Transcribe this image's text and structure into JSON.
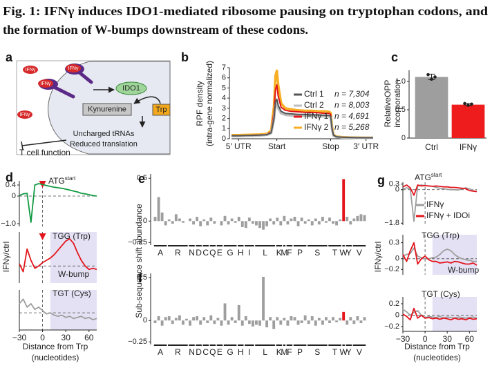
{
  "title": [
    "Fig. 1: IFNγ induces IDO1-mediated ribosome pausing on tryptophan codons, and",
    "the formation of W-bumps downstream of these codons."
  ],
  "panel_a": {
    "panel": "a",
    "ligands": [
      "IFNγ",
      "IFNγ",
      "IFNγ",
      "IFNγ"
    ],
    "enzyme": "IDO1",
    "product": "Kynurenine",
    "substrate": "Trp",
    "effects": [
      "Uncharged tRNAs",
      "Reduced translation"
    ],
    "outcome": "T cell function"
  },
  "chart_data": [
    {
      "type": "line",
      "panel": "b",
      "ylabel": [
        "RPF density",
        "(intra-gene normalized)"
      ],
      "x": [
        0,
        5,
        10,
        15,
        20,
        25,
        28,
        30,
        31,
        32,
        33,
        35,
        38,
        42,
        47,
        52,
        57,
        62,
        66,
        69,
        70,
        71,
        72,
        74,
        78,
        84,
        90,
        95,
        100
      ],
      "xlim": [
        0,
        100
      ],
      "xticks": [
        {
          "value": 5,
          "label": "5′ UTR"
        },
        {
          "value": 32,
          "label": "Start"
        },
        {
          "value": 70,
          "label": "Stop"
        },
        {
          "value": 95,
          "label": "3′ UTR"
        }
      ],
      "ylim": [
        0,
        7
      ],
      "yticks": [
        0,
        1,
        2,
        3,
        4,
        5,
        6,
        7
      ],
      "series": [
        {
          "name": "Ctrl 1",
          "label": "n = 7,304",
          "color": "#555555",
          "values": [
            0.3,
            0.3,
            0.32,
            0.33,
            0.35,
            0.4,
            0.6,
            2.0,
            3.6,
            3.9,
            3.3,
            2.7,
            2.5,
            2.45,
            2.4,
            2.4,
            2.35,
            2.35,
            2.3,
            2.3,
            2.2,
            1.0,
            0.35,
            0.2,
            0.15,
            0.12,
            0.1,
            0.1,
            0.1
          ]
        },
        {
          "name": "Ctrl 2",
          "label": "n = 8,003",
          "color": "#bdbdbd",
          "values": [
            0.25,
            0.25,
            0.28,
            0.3,
            0.32,
            0.38,
            0.55,
            1.9,
            3.3,
            3.5,
            3.0,
            2.5,
            2.35,
            2.3,
            2.25,
            2.25,
            2.2,
            2.2,
            2.2,
            2.2,
            2.1,
            0.9,
            0.3,
            0.18,
            0.12,
            0.1,
            0.08,
            0.08,
            0.08
          ]
        },
        {
          "name": "IFNγ 1",
          "label": "n = 4,691",
          "color": "#e3141b",
          "values": [
            0.3,
            0.3,
            0.32,
            0.35,
            0.38,
            0.42,
            0.7,
            2.6,
            4.8,
            5.3,
            4.2,
            3.1,
            2.8,
            2.7,
            2.65,
            2.6,
            2.6,
            2.55,
            2.5,
            2.5,
            2.4,
            1.1,
            0.35,
            0.2,
            0.15,
            0.12,
            0.1,
            0.1,
            0.1
          ]
        },
        {
          "name": "IFNγ 2",
          "label": "n = 5,268",
          "color": "#f7ae22",
          "values": [
            0.35,
            0.35,
            0.38,
            0.4,
            0.42,
            0.48,
            0.8,
            3.2,
            6.2,
            6.7,
            5.3,
            3.5,
            3.0,
            2.9,
            2.8,
            2.75,
            2.75,
            2.7,
            2.7,
            2.65,
            2.55,
            1.2,
            0.4,
            0.22,
            0.16,
            0.13,
            0.11,
            0.1,
            0.1
          ]
        }
      ]
    },
    {
      "type": "bar",
      "panel": "c",
      "ylabel": [
        "RelativeOPP",
        "incorporation"
      ],
      "categories": [
        "Ctrl",
        "IFNγ"
      ],
      "values": [
        1.08,
        0.59
      ],
      "errors": [
        0.05,
        0.02
      ],
      "points": [
        [
          1.12,
          1.04,
          1.08
        ],
        [
          0.61,
          0.58,
          0.6
        ]
      ],
      "colors": [
        "#9e9e9e",
        "#ee1c1c"
      ],
      "ylim": [
        0,
        1.2
      ],
      "yticks": [
        0,
        0.5,
        {
          "value": 1,
          "label": "1.0"
        }
      ]
    },
    {
      "type": "line",
      "panel": "d",
      "title": "ATG",
      "title_sup": "start",
      "origin_lines": true,
      "x": [
        -30,
        -25,
        -20,
        -15,
        -10,
        -5,
        0,
        5,
        10,
        15,
        20,
        25,
        30,
        35,
        40,
        45,
        50,
        55,
        60,
        65,
        70
      ],
      "xlim": [
        -30,
        70
      ],
      "ylim": [
        -1.1,
        0.55
      ],
      "yticks": [
        0.4,
        0,
        {
          "value": -1,
          "label": "−1.0"
        }
      ],
      "series": [
        {
          "color": "#139a43",
          "values": [
            0.02,
            0.08,
            0.1,
            -0.95,
            0.4,
            0.45,
            0.42,
            0.38,
            0.35,
            0.32,
            0.3,
            0.28,
            0.25,
            0.22,
            0.18,
            0.15,
            0.1,
            0.08,
            0.05,
            0.02,
            0.0
          ]
        }
      ]
    },
    {
      "type": "line",
      "title": "TGG (Trp)",
      "ylabel": "IFNγ/ctrl",
      "annotation": "W-bump",
      "origin_lines": true,
      "shade": [
        10,
        70
      ],
      "shade_color": "#e5e1f4",
      "x": [
        -30,
        -25,
        -20,
        -15,
        -10,
        -5,
        0,
        5,
        10,
        15,
        20,
        25,
        30,
        35,
        40,
        45,
        50,
        55,
        60,
        65,
        70
      ],
      "xlim": [
        -30,
        70
      ],
      "ylim": [
        -0.15,
        0.3
      ],
      "series": [
        {
          "color": "#e3141b",
          "values": [
            0.02,
            -0.05,
            0.15,
            0.05,
            -0.02,
            0.0,
            0.03,
            0.05,
            0.07,
            0.1,
            0.14,
            0.18,
            0.22,
            0.24,
            0.2,
            0.12,
            0.05,
            0.0,
            -0.03,
            -0.02,
            -0.03
          ]
        }
      ]
    },
    {
      "type": "line",
      "title": "TGT (Cys)",
      "origin_lines": true,
      "shade": [
        10,
        70
      ],
      "shade_color": "#e5e1f4",
      "xlabel": [
        "Distance from Trp",
        "(nucleotides)"
      ],
      "x": [
        -30,
        -25,
        -20,
        -15,
        -10,
        -5,
        0,
        5,
        10,
        15,
        20,
        25,
        30,
        35,
        40,
        45,
        50,
        55,
        60,
        65,
        70
      ],
      "xlim": [
        -30,
        70
      ],
      "xticks": [
        {
          "value": -30,
          "label": "−30"
        },
        0,
        30,
        60
      ],
      "ylim": [
        -0.15,
        0.2
      ],
      "series": [
        {
          "color": "#9e9e9e",
          "values": [
            0.08,
            0.12,
            0.05,
            0.08,
            0.03,
            0.05,
            0.02,
            -0.01,
            0.0,
            -0.02,
            -0.03,
            -0.02,
            -0.04,
            -0.03,
            -0.05,
            -0.04,
            -0.03,
            -0.05,
            -0.04,
            -0.06,
            -0.05
          ]
        }
      ]
    },
    {
      "type": "bar",
      "panel": "e",
      "ylabel": "Sub-sequence shift abundance",
      "color": "#9e9e9e",
      "ylim": [
        -0.28,
        0.55
      ],
      "yticks": [
        0.5,
        0,
        {
          "value": -0.25,
          "label": "−0.25"
        }
      ],
      "groups": [
        {
          "label": "A",
          "size": 4
        },
        {
          "label": "R",
          "size": 6
        },
        {
          "label": "N",
          "size": 2
        },
        {
          "label": "D",
          "size": 2
        },
        {
          "label": "C",
          "size": 2
        },
        {
          "label": "Q",
          "size": 2
        },
        {
          "label": "E",
          "size": 2
        },
        {
          "label": "G",
          "size": 4
        },
        {
          "label": "H",
          "size": 2
        },
        {
          "label": "I",
          "size": 3
        },
        {
          "label": "L",
          "size": 6
        },
        {
          "label": "K",
          "size": 2
        },
        {
          "label": "M",
          "size": 1
        },
        {
          "label": "F",
          "size": 2
        },
        {
          "label": "P",
          "size": 4
        },
        {
          "label": "S",
          "size": 6
        },
        {
          "label": "T",
          "size": 4
        },
        {
          "label": "W",
          "size": 1,
          "color": "#e3141b"
        },
        {
          "label": "Y",
          "size": 2
        },
        {
          "label": "V",
          "size": 4
        }
      ],
      "values": [
        0.05,
        0.28,
        0.1,
        -0.05,
        0.02,
        -0.03,
        0.08,
        0.03,
        -0.02,
        0.0,
        0.03,
        -0.04,
        0.05,
        -0.06,
        0.02,
        -0.05,
        0.04,
        -0.03,
        0.0,
        -0.05,
        0.06,
        -0.04,
        0.03,
        -0.02,
        0.05,
        -0.07,
        -0.08,
        0.04,
        -0.03,
        -0.05,
        -0.08,
        -0.1,
        -0.06,
        0.03,
        -0.04,
        0.04,
        -0.05,
        0.06,
        -0.04,
        0.03,
        0.05,
        -0.06,
        0.04,
        -0.03,
        0.02,
        -0.05,
        0.03,
        -0.04,
        0.05,
        -0.02,
        0.04,
        -0.03,
        -0.05,
        0.02,
        0.49,
        0.05,
        -0.04,
        0.03,
        0.06,
        0.08,
        0.07
      ]
    },
    {
      "type": "bar",
      "panel": "f",
      "color": "#9e9e9e",
      "ylim": [
        -0.28,
        0.55
      ],
      "yticks": [
        0.5,
        0,
        {
          "value": -0.25,
          "label": "−0.25"
        }
      ],
      "groups": [
        {
          "label": "A",
          "size": 4
        },
        {
          "label": "R",
          "size": 6
        },
        {
          "label": "N",
          "size": 2
        },
        {
          "label": "D",
          "size": 2
        },
        {
          "label": "C",
          "size": 2
        },
        {
          "label": "Q",
          "size": 2
        },
        {
          "label": "E",
          "size": 2
        },
        {
          "label": "G",
          "size": 4
        },
        {
          "label": "H",
          "size": 2
        },
        {
          "label": "I",
          "size": 3
        },
        {
          "label": "L",
          "size": 6
        },
        {
          "label": "K",
          "size": 2
        },
        {
          "label": "M",
          "size": 1
        },
        {
          "label": "F",
          "size": 2
        },
        {
          "label": "P",
          "size": 4
        },
        {
          "label": "S",
          "size": 6
        },
        {
          "label": "T",
          "size": 4
        },
        {
          "label": "W",
          "size": 1,
          "color": "#e3141b"
        },
        {
          "label": "Y",
          "size": 2
        },
        {
          "label": "V",
          "size": 4
        }
      ],
      "values": [
        -0.03,
        0.05,
        -0.06,
        0.04,
        0.05,
        -0.04,
        0.03,
        0.06,
        -0.05,
        0.02,
        -0.06,
        0.04,
        0.05,
        -0.05,
        0.04,
        -0.03,
        0.06,
        -0.04,
        0.03,
        -0.06,
        0.2,
        -0.05,
        0.04,
        -0.03,
        0.18,
        -0.06,
        0.05,
        -0.04,
        -0.07,
        -0.05,
        -0.06,
        0.51,
        -0.08,
        0.04,
        -0.1,
        0.04,
        -0.05,
        0.03,
        -0.06,
        0.05,
        0.04,
        -0.05,
        -0.03,
        0.06,
        -0.04,
        0.05,
        -0.06,
        0.03,
        -0.05,
        0.04,
        -0.03,
        0.04,
        -0.02,
        0.03,
        0.1,
        -0.05,
        0.04,
        -0.04,
        0.05,
        -0.03,
        0.04
      ]
    },
    {
      "type": "line",
      "panel": "g",
      "title": "ATG",
      "title_sup": "start",
      "origin_lines": true,
      "x": [
        -30,
        -25,
        -20,
        -15,
        -10,
        -5,
        0,
        5,
        10,
        15,
        20,
        25,
        30,
        35,
        40,
        45,
        50,
        55,
        60,
        65,
        70
      ],
      "xlim": [
        -30,
        70
      ],
      "ylim": [
        -1.9,
        0.4
      ],
      "yticks": [
        0.3,
        0,
        {
          "value": -1.8,
          "label": "−1.8"
        }
      ],
      "series": [
        {
          "name": "IFNγ",
          "color": "#9e9e9e",
          "values": [
            0.05,
            0.1,
            0.05,
            -1.7,
            0.2,
            0.25,
            0.22,
            0.2,
            0.18,
            0.12,
            0.08,
            0.05,
            0.02,
            0.0,
            0.0,
            -0.02,
            0.05,
            0.1,
            0.05,
            -0.05,
            -0.1
          ]
        },
        {
          "name": "IFNγ + IDOi",
          "color": "#e3141b",
          "values": [
            0.15,
            0.25,
            0.1,
            -0.3,
            0.25,
            0.2,
            0.22,
            0.2,
            0.18,
            0.2,
            0.18,
            0.15,
            0.15,
            0.12,
            0.12,
            0.1,
            0.08,
            0.05,
            -0.05,
            -0.08,
            -0.1
          ]
        }
      ]
    },
    {
      "type": "line",
      "title": "TGG (Trp)",
      "ylabel": "IFNγ/ctrl",
      "annotation": "W-bump",
      "origin_lines": true,
      "shade": [
        10,
        70
      ],
      "shade_color": "#e5e1f4",
      "x": [
        -30,
        -25,
        -20,
        -15,
        -10,
        -5,
        0,
        5,
        10,
        15,
        20,
        25,
        30,
        35,
        40,
        45,
        50,
        55,
        60,
        65,
        70
      ],
      "xlim": [
        -30,
        70
      ],
      "ylim": [
        -0.3,
        0.45
      ],
      "yticks": [
        0.3,
        0,
        {
          "value": -0.2,
          "label": "−0.2"
        }
      ],
      "series": [
        {
          "color": "#9e9e9e",
          "values": [
            0.05,
            0.08,
            0.1,
            0.2,
            0.05,
            0.02,
            0.0,
            0.0,
            0.02,
            0.03,
            0.08,
            0.15,
            0.18,
            0.15,
            0.08,
            0.03,
            0.0,
            -0.02,
            -0.03,
            -0.05,
            -0.05
          ]
        },
        {
          "color": "#e3141b",
          "values": [
            0.08,
            -0.05,
            0.15,
            0.3,
            -0.1,
            0.0,
            0.05,
            -0.02,
            -0.05,
            -0.05,
            -0.08,
            -0.07,
            -0.06,
            -0.08,
            -0.05,
            -0.06,
            -0.08,
            -0.1,
            -0.1,
            -0.08,
            -0.12
          ]
        }
      ]
    },
    {
      "type": "line",
      "title": "TGT (Cys)",
      "origin_lines": true,
      "shade": [
        10,
        70
      ],
      "shade_color": "#e5e1f4",
      "xlabel": [
        "Distance from Trp",
        "(nucleotides)"
      ],
      "x": [
        -30,
        -25,
        -20,
        -15,
        -10,
        -5,
        0,
        5,
        10,
        15,
        20,
        25,
        30,
        35,
        40,
        45,
        50,
        55,
        60,
        65,
        70
      ],
      "xlim": [
        -30,
        70
      ],
      "xticks": [
        {
          "value": -30,
          "label": "−30"
        },
        0,
        30,
        60
      ],
      "ylim": [
        -0.28,
        0.32
      ],
      "yticks": [
        0.2,
        0,
        {
          "value": -0.2,
          "label": "−0.2"
        }
      ],
      "series": [
        {
          "color": "#9e9e9e",
          "values": [
            0.1,
            0.06,
            0.0,
            0.05,
            0.08,
            0.0,
            -0.05,
            -0.02,
            -0.03,
            -0.04,
            -0.02,
            -0.05,
            -0.03,
            -0.04,
            -0.05,
            -0.03,
            -0.04,
            -0.05,
            -0.04,
            -0.03,
            -0.05
          ]
        },
        {
          "color": "#e3141b",
          "values": [
            0.02,
            -0.02,
            -0.08,
            0.12,
            -0.05,
            0.0,
            -0.05,
            -0.04,
            -0.06,
            -0.05,
            -0.07,
            -0.05,
            -0.06,
            -0.08,
            -0.05,
            -0.07,
            -0.06,
            -0.08,
            -0.05,
            -0.07,
            -0.06
          ]
        }
      ]
    }
  ]
}
